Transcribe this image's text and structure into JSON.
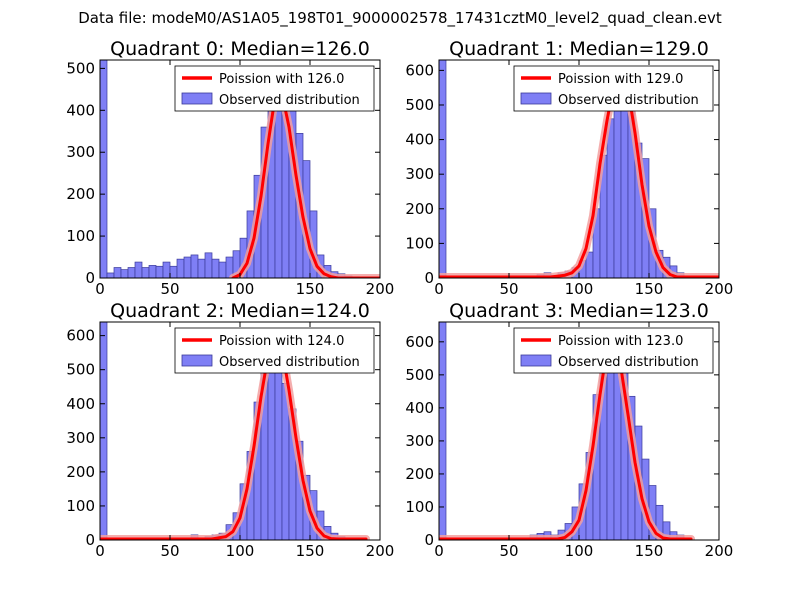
{
  "figure": {
    "suptitle": "Data file: modeM0/AS1A05_198T01_9000002578_17431cztM0_level2_quad_clean.evt",
    "colors": {
      "hist_fill": "#7f7ff5",
      "hist_edge": "#3a3a9a",
      "poisson_line": "#ff0000",
      "poisson_glow": "#f2a0a0",
      "frame": "#000000"
    }
  },
  "chart_data": [
    {
      "type": "bar",
      "title": "Quadrant 0: Median=126.0",
      "median": 126,
      "xlim": [
        0,
        200
      ],
      "ylim": [
        0,
        520
      ],
      "xticks": [
        0,
        50,
        100,
        150,
        200
      ],
      "yticks": [
        0,
        100,
        200,
        300,
        400,
        500
      ],
      "bin_width": 5,
      "bin_starts": [
        0,
        5,
        10,
        15,
        20,
        25,
        30,
        35,
        40,
        45,
        50,
        55,
        60,
        65,
        70,
        75,
        80,
        85,
        90,
        95,
        100,
        105,
        110,
        115,
        120,
        125,
        130,
        135,
        140,
        145,
        150,
        155,
        160,
        165,
        170,
        175,
        180,
        185
      ],
      "hist_values": [
        520,
        12,
        25,
        20,
        25,
        38,
        25,
        30,
        28,
        38,
        28,
        45,
        50,
        55,
        45,
        60,
        45,
        38,
        50,
        65,
        95,
        160,
        245,
        360,
        440,
        505,
        490,
        430,
        345,
        280,
        160,
        55,
        30,
        15,
        10,
        5,
        3,
        0
      ],
      "poisson": [
        [
          95,
          0
        ],
        [
          100,
          8
        ],
        [
          105,
          35
        ],
        [
          110,
          95
        ],
        [
          115,
          195
        ],
        [
          120,
          320
        ],
        [
          125,
          430
        ],
        [
          128,
          450
        ],
        [
          130,
          440
        ],
        [
          135,
          360
        ],
        [
          140,
          245
        ],
        [
          145,
          145
        ],
        [
          150,
          70
        ],
        [
          155,
          28
        ],
        [
          160,
          10
        ],
        [
          165,
          3
        ],
        [
          170,
          0
        ],
        [
          200,
          0
        ]
      ],
      "legend": [
        "Poission with 126.0",
        "Observed distribution"
      ]
    },
    {
      "type": "bar",
      "title": "Quadrant 1: Median=129.0",
      "median": 129,
      "xlim": [
        0,
        200
      ],
      "ylim": [
        0,
        630
      ],
      "xticks": [
        0,
        50,
        100,
        150,
        200
      ],
      "yticks": [
        0,
        100,
        200,
        300,
        400,
        500,
        600
      ],
      "bin_width": 5,
      "bin_starts": [
        0,
        5,
        10,
        15,
        20,
        25,
        30,
        35,
        40,
        45,
        50,
        55,
        60,
        65,
        70,
        75,
        80,
        85,
        90,
        95,
        100,
        105,
        110,
        115,
        120,
        125,
        130,
        135,
        140,
        145,
        150,
        155,
        160,
        165,
        170,
        175,
        180,
        185
      ],
      "hist_values": [
        630,
        0,
        0,
        0,
        0,
        0,
        0,
        0,
        0,
        0,
        0,
        0,
        0,
        0,
        10,
        15,
        8,
        15,
        20,
        30,
        50,
        75,
        200,
        355,
        460,
        600,
        570,
        535,
        390,
        345,
        200,
        80,
        60,
        35,
        15,
        5,
        0,
        0
      ],
      "poisson": [
        [
          0,
          3
        ],
        [
          70,
          3
        ],
        [
          80,
          3
        ],
        [
          90,
          8
        ],
        [
          95,
          15
        ],
        [
          100,
          35
        ],
        [
          105,
          85
        ],
        [
          110,
          180
        ],
        [
          115,
          330
        ],
        [
          120,
          455
        ],
        [
          125,
          560
        ],
        [
          130,
          600
        ],
        [
          135,
          545
        ],
        [
          140,
          420
        ],
        [
          145,
          270
        ],
        [
          150,
          150
        ],
        [
          155,
          75
        ],
        [
          160,
          30
        ],
        [
          165,
          10
        ],
        [
          170,
          3
        ],
        [
          200,
          3
        ]
      ],
      "legend": [
        "Poission with 129.0",
        "Observed distribution"
      ]
    },
    {
      "type": "bar",
      "title": "Quadrant 2: Median=124.0",
      "median": 124,
      "xlim": [
        0,
        200
      ],
      "ylim": [
        0,
        640
      ],
      "xticks": [
        0,
        50,
        100,
        150,
        200
      ],
      "yticks": [
        0,
        100,
        200,
        300,
        400,
        500,
        600
      ],
      "bin_width": 5,
      "bin_starts": [
        0,
        5,
        10,
        15,
        20,
        25,
        30,
        35,
        40,
        45,
        50,
        55,
        60,
        65,
        70,
        75,
        80,
        85,
        90,
        95,
        100,
        105,
        110,
        115,
        120,
        125,
        130,
        135,
        140,
        145,
        150,
        155,
        160,
        165,
        170,
        175,
        180,
        185
      ],
      "hist_values": [
        640,
        0,
        0,
        0,
        0,
        0,
        0,
        0,
        0,
        0,
        0,
        0,
        0,
        15,
        0,
        10,
        15,
        20,
        45,
        80,
        165,
        260,
        405,
        490,
        600,
        590,
        460,
        385,
        290,
        190,
        145,
        85,
        40,
        20,
        10,
        5,
        3,
        0
      ],
      "poisson": [
        [
          0,
          3
        ],
        [
          80,
          3
        ],
        [
          90,
          10
        ],
        [
          95,
          25
        ],
        [
          100,
          65
        ],
        [
          105,
          150
        ],
        [
          110,
          275
        ],
        [
          115,
          420
        ],
        [
          120,
          540
        ],
        [
          125,
          605
        ],
        [
          130,
          560
        ],
        [
          135,
          440
        ],
        [
          140,
          300
        ],
        [
          145,
          175
        ],
        [
          150,
          85
        ],
        [
          155,
          35
        ],
        [
          160,
          12
        ],
        [
          165,
          4
        ],
        [
          170,
          3
        ],
        [
          190,
          3
        ]
      ],
      "legend": [
        "Poission with 124.0",
        "Observed distribution"
      ]
    },
    {
      "type": "bar",
      "title": "Quadrant 3: Median=123.0",
      "median": 123,
      "xlim": [
        0,
        200
      ],
      "ylim": [
        0,
        660
      ],
      "xticks": [
        0,
        50,
        100,
        150,
        200
      ],
      "yticks": [
        0,
        100,
        200,
        300,
        400,
        500,
        600
      ],
      "bin_width": 5,
      "bin_starts": [
        0,
        5,
        10,
        15,
        20,
        25,
        30,
        35,
        40,
        45,
        50,
        55,
        60,
        65,
        70,
        75,
        80,
        85,
        90,
        95,
        100,
        105,
        110,
        115,
        120,
        125,
        130,
        135,
        140,
        145,
        150,
        155,
        160,
        165,
        170,
        175,
        180,
        185
      ],
      "hist_values": [
        660,
        0,
        0,
        0,
        0,
        0,
        0,
        0,
        0,
        0,
        0,
        0,
        0,
        15,
        20,
        25,
        15,
        30,
        50,
        100,
        170,
        265,
        440,
        590,
        565,
        630,
        530,
        435,
        345,
        245,
        165,
        105,
        55,
        25,
        15,
        3,
        0,
        0
      ],
      "poisson": [
        [
          0,
          3
        ],
        [
          85,
          3
        ],
        [
          90,
          8
        ],
        [
          95,
          25
        ],
        [
          100,
          60
        ],
        [
          105,
          150
        ],
        [
          110,
          285
        ],
        [
          115,
          440
        ],
        [
          120,
          580
        ],
        [
          123,
          610
        ],
        [
          125,
          600
        ],
        [
          130,
          520
        ],
        [
          135,
          380
        ],
        [
          140,
          235
        ],
        [
          145,
          125
        ],
        [
          150,
          55
        ],
        [
          155,
          20
        ],
        [
          160,
          6
        ],
        [
          165,
          3
        ],
        [
          180,
          3
        ]
      ],
      "legend": [
        "Poission with 123.0",
        "Observed distribution"
      ]
    }
  ]
}
